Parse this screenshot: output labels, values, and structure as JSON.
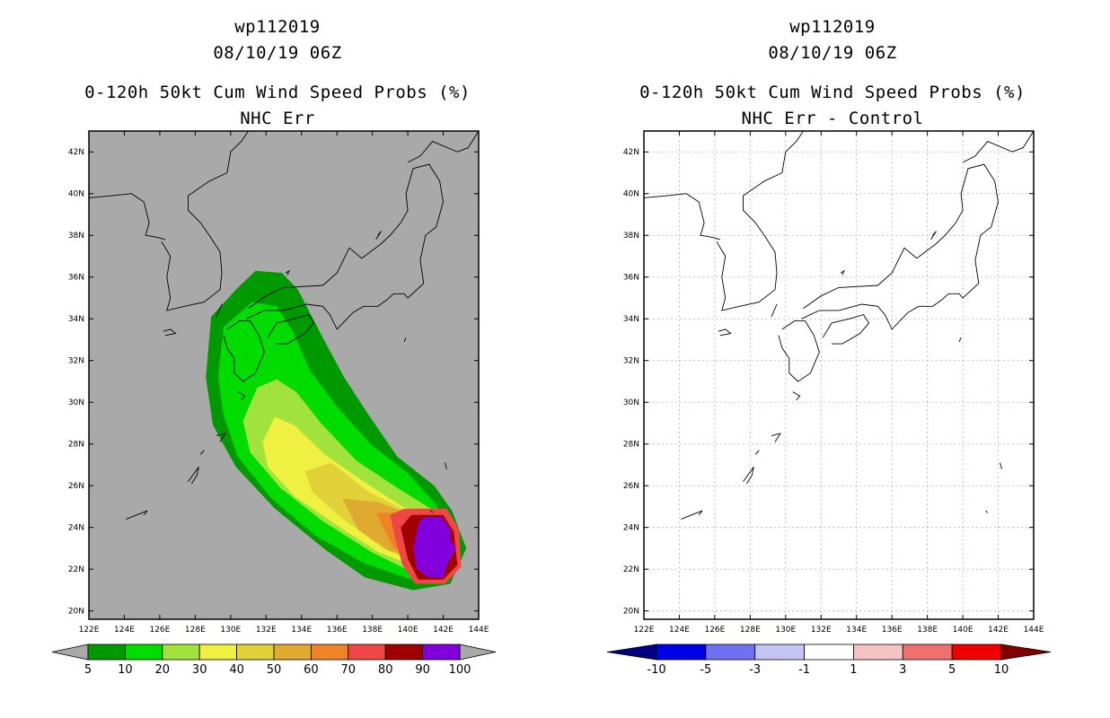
{
  "chart_data": [
    {
      "type": "heatmap",
      "titles": [
        "wp112019",
        "08/10/19 06Z",
        "0-120h 50kt Cum Wind Speed Probs (%)",
        "NHC Err"
      ],
      "x_ticks": [
        "122E",
        "124E",
        "126E",
        "128E",
        "130E",
        "132E",
        "134E",
        "136E",
        "138E",
        "140E",
        "142E",
        "144E"
      ],
      "y_ticks": [
        "20N",
        "22N",
        "24N",
        "26N",
        "28N",
        "30N",
        "32N",
        "34N",
        "36N",
        "38N",
        "40N",
        "42N"
      ],
      "xlim": [
        122,
        144
      ],
      "ylim": [
        19.6,
        43.0
      ],
      "grid": false,
      "background": "#a9a9a9",
      "colorbar": {
        "labels": [
          "5",
          "10",
          "20",
          "30",
          "40",
          "50",
          "60",
          "70",
          "80",
          "90",
          "100"
        ],
        "colors": [
          "#009a00",
          "#00dc00",
          "#a2e23c",
          "#f0f040",
          "#e1d23a",
          "#e0aa30",
          "#f08228",
          "#f04646",
          "#a00000",
          "#8200dc"
        ],
        "extend_colors": [
          "#a9a9a9",
          "#a9a9a9"
        ]
      },
      "contours": [
        {
          "level": 5,
          "color": "#009a00",
          "points": [
            [
              128.6,
              31.2
            ],
            [
              128.9,
              34.1
            ],
            [
              130.3,
              35.4
            ],
            [
              131.4,
              36.3
            ],
            [
              132.9,
              36.2
            ],
            [
              133.8,
              35.4
            ],
            [
              135.2,
              33.1
            ],
            [
              136.4,
              31.2
            ],
            [
              137.7,
              29.5
            ],
            [
              139.4,
              27.4
            ],
            [
              141.5,
              26.0
            ],
            [
              142.5,
              24.8
            ],
            [
              143.3,
              23.0
            ],
            [
              142.4,
              21.3
            ],
            [
              140.3,
              21.0
            ],
            [
              137.6,
              21.6
            ],
            [
              135.4,
              22.9
            ],
            [
              132.5,
              24.9
            ],
            [
              130.3,
              26.9
            ],
            [
              129.0,
              28.9
            ]
          ]
        },
        {
          "level": 10,
          "color": "#00dc00",
          "points": [
            [
              129.3,
              31.2
            ],
            [
              129.6,
              33.6
            ],
            [
              131.2,
              34.8
            ],
            [
              132.6,
              34.6
            ],
            [
              133.5,
              33.4
            ],
            [
              134.5,
              31.5
            ],
            [
              136.0,
              29.8
            ],
            [
              137.9,
              28.0
            ],
            [
              140.0,
              26.6
            ],
            [
              141.5,
              25.2
            ],
            [
              142.5,
              23.9
            ],
            [
              142.7,
              22.7
            ],
            [
              141.8,
              21.5
            ],
            [
              140.2,
              21.5
            ],
            [
              137.5,
              22.3
            ],
            [
              134.8,
              23.6
            ],
            [
              132.3,
              25.4
            ],
            [
              130.4,
              27.4
            ],
            [
              129.6,
              29.4
            ]
          ]
        },
        {
          "level": 20,
          "color": "#a2e23c",
          "points": [
            [
              130.7,
              29.1
            ],
            [
              131.5,
              30.7
            ],
            [
              132.6,
              31.1
            ],
            [
              133.7,
              30.5
            ],
            [
              135.1,
              29.0
            ],
            [
              137.1,
              27.2
            ],
            [
              139.4,
              25.9
            ],
            [
              141.5,
              24.8
            ],
            [
              142.3,
              23.5
            ],
            [
              141.8,
              21.8
            ],
            [
              140.4,
              21.8
            ],
            [
              138.0,
              22.8
            ],
            [
              135.2,
              24.3
            ],
            [
              132.8,
              25.9
            ],
            [
              131.1,
              27.6
            ]
          ]
        },
        {
          "level": 30,
          "color": "#f0f040",
          "points": [
            [
              131.8,
              28.1
            ],
            [
              132.5,
              29.3
            ],
            [
              133.6,
              28.9
            ],
            [
              135.3,
              27.5
            ],
            [
              137.5,
              26.2
            ],
            [
              139.7,
              25.0
            ],
            [
              141.5,
              24.5
            ],
            [
              141.9,
              23.0
            ],
            [
              140.8,
              22.0
            ],
            [
              138.4,
              22.8
            ],
            [
              136.0,
              24.1
            ],
            [
              133.6,
              25.5
            ],
            [
              132.1,
              26.9
            ]
          ]
        },
        {
          "level": 40,
          "color": "#e1d23a",
          "points": [
            [
              134.2,
              26.7
            ],
            [
              135.7,
              27.1
            ],
            [
              137.8,
              25.7
            ],
            [
              139.9,
              24.8
            ],
            [
              141.4,
              24.3
            ],
            [
              141.7,
              23.2
            ],
            [
              140.7,
              22.3
            ],
            [
              138.6,
              23.0
            ],
            [
              136.2,
              24.5
            ],
            [
              134.6,
              25.7
            ]
          ]
        },
        {
          "level": 50,
          "color": "#e0aa30",
          "points": [
            [
              136.3,
              25.4
            ],
            [
              138.4,
              25.2
            ],
            [
              140.2,
              24.6
            ],
            [
              141.3,
              24.0
            ],
            [
              141.5,
              23.1
            ],
            [
              140.6,
              22.4
            ],
            [
              138.9,
              22.9
            ],
            [
              137.2,
              23.9
            ]
          ]
        },
        {
          "level": 60,
          "color": "#f08228",
          "points": [
            [
              138.2,
              24.7
            ],
            [
              139.8,
              24.7
            ],
            [
              141.2,
              24.5
            ],
            [
              141.4,
              23.2
            ],
            [
              140.5,
              22.6
            ],
            [
              139.2,
              23.0
            ]
          ]
        },
        {
          "level": 70,
          "color": "#f04646",
          "points": [
            [
              139.0,
              24.6
            ],
            [
              139.8,
              24.9
            ],
            [
              142.2,
              24.9
            ],
            [
              142.9,
              23.9
            ],
            [
              143.0,
              22.1
            ],
            [
              142.1,
              21.3
            ],
            [
              140.4,
              21.3
            ],
            [
              139.7,
              22.2
            ],
            [
              139.3,
              23.4
            ]
          ]
        },
        {
          "level": 80,
          "color": "#a00000",
          "points": [
            [
              139.6,
              24.0
            ],
            [
              140.2,
              24.6
            ],
            [
              142.0,
              24.6
            ],
            [
              142.6,
              23.8
            ],
            [
              142.8,
              22.2
            ],
            [
              142.0,
              21.5
            ],
            [
              140.6,
              21.5
            ],
            [
              140.0,
              22.5
            ]
          ]
        },
        {
          "level": 90,
          "color": "#8200dc",
          "points": [
            [
              140.6,
              24.2
            ],
            [
              140.9,
              24.5
            ],
            [
              141.9,
              24.5
            ],
            [
              142.4,
              23.9
            ],
            [
              142.4,
              23.4
            ],
            [
              142.7,
              23.0
            ],
            [
              142.2,
              22.2
            ],
            [
              142.0,
              21.6
            ],
            [
              141.2,
              21.6
            ],
            [
              140.5,
              22.0
            ],
            [
              140.3,
              23.0
            ]
          ]
        }
      ]
    },
    {
      "type": "heatmap",
      "titles": [
        "wp112019",
        "08/10/19 06Z",
        "0-120h 50kt Cum Wind Speed Probs (%)",
        "NHC Err - Control"
      ],
      "x_ticks": [
        "122E",
        "124E",
        "126E",
        "128E",
        "130E",
        "132E",
        "134E",
        "136E",
        "138E",
        "140E",
        "142E",
        "144E"
      ],
      "y_ticks": [
        "20N",
        "22N",
        "24N",
        "26N",
        "28N",
        "30N",
        "32N",
        "34N",
        "36N",
        "38N",
        "40N",
        "42N"
      ],
      "xlim": [
        122,
        144
      ],
      "ylim": [
        19.6,
        43.0
      ],
      "grid": true,
      "background": "#ffffff",
      "colorbar": {
        "labels": [
          "-10",
          "-5",
          "-3",
          "-1",
          "1",
          "3",
          "5",
          "10"
        ],
        "colors": [
          "#0000e6",
          "#7070f0",
          "#c4c4f4",
          "#ffffff",
          "#f4c4c4",
          "#f07070",
          "#f00000"
        ],
        "extend_colors": [
          "#000080",
          "#800000"
        ]
      },
      "contours": []
    }
  ],
  "coastlines": [
    {
      "name": "korea",
      "points": [
        [
          126.1,
          37.7
        ],
        [
          126.6,
          37.0
        ],
        [
          126.4,
          36.0
        ],
        [
          126.6,
          35.0
        ],
        [
          126.4,
          34.4
        ],
        [
          127.4,
          34.6
        ],
        [
          128.5,
          34.8
        ],
        [
          129.4,
          35.4
        ],
        [
          129.5,
          36.2
        ],
        [
          129.4,
          37.2
        ],
        [
          128.8,
          38.0
        ],
        [
          128.3,
          38.6
        ],
        [
          127.6,
          39.2
        ],
        [
          127.6,
          39.9
        ],
        [
          128.8,
          40.6
        ],
        [
          129.8,
          41.0
        ],
        [
          130.0,
          42.0
        ],
        [
          130.6,
          42.5
        ],
        [
          131.0,
          43.0
        ]
      ]
    },
    {
      "name": "china-coast",
      "points": [
        [
          122.0,
          39.8
        ],
        [
          123.3,
          39.9
        ],
        [
          124.4,
          40.0
        ],
        [
          125.1,
          39.6
        ],
        [
          125.4,
          38.6
        ],
        [
          125.2,
          38.0
        ],
        [
          125.9,
          37.9
        ],
        [
          126.3,
          37.8
        ]
      ]
    },
    {
      "name": "kyushu",
      "points": [
        [
          129.8,
          33.5
        ],
        [
          130.5,
          33.9
        ],
        [
          131.1,
          33.9
        ],
        [
          131.6,
          33.2
        ],
        [
          131.9,
          32.4
        ],
        [
          131.4,
          31.4
        ],
        [
          130.7,
          31.0
        ],
        [
          130.2,
          31.4
        ],
        [
          130.2,
          32.1
        ],
        [
          129.8,
          32.6
        ],
        [
          129.6,
          33.2
        ]
      ]
    },
    {
      "name": "shikoku",
      "points": [
        [
          132.1,
          33.1
        ],
        [
          132.6,
          33.8
        ],
        [
          133.6,
          34.0
        ],
        [
          134.4,
          34.2
        ],
        [
          134.7,
          33.8
        ],
        [
          134.2,
          33.3
        ],
        [
          133.2,
          32.8
        ],
        [
          132.6,
          32.8
        ]
      ]
    },
    {
      "name": "honshu",
      "points": [
        [
          130.9,
          34.0
        ],
        [
          131.9,
          34.4
        ],
        [
          133.0,
          34.4
        ],
        [
          134.3,
          34.7
        ],
        [
          135.2,
          34.6
        ],
        [
          135.6,
          34.2
        ],
        [
          136.0,
          33.5
        ],
        [
          136.9,
          34.3
        ],
        [
          137.5,
          34.6
        ],
        [
          138.3,
          34.6
        ],
        [
          138.8,
          34.9
        ],
        [
          139.2,
          35.2
        ],
        [
          139.8,
          35.2
        ],
        [
          140.0,
          35.0
        ],
        [
          140.9,
          35.7
        ],
        [
          140.7,
          36.8
        ],
        [
          141.0,
          38.0
        ],
        [
          141.6,
          38.4
        ],
        [
          142.0,
          39.6
        ],
        [
          141.8,
          40.6
        ],
        [
          141.2,
          41.4
        ],
        [
          140.3,
          41.2
        ],
        [
          139.9,
          40.0
        ],
        [
          140.0,
          39.2
        ],
        [
          139.6,
          38.6
        ],
        [
          139.0,
          38.0
        ],
        [
          138.5,
          37.6
        ],
        [
          137.4,
          36.9
        ],
        [
          136.7,
          37.4
        ],
        [
          136.0,
          36.2
        ],
        [
          135.2,
          35.6
        ],
        [
          133.0,
          35.5
        ],
        [
          132.0,
          35.1
        ],
        [
          131.0,
          34.5
        ]
      ]
    },
    {
      "name": "hokkaido",
      "points": [
        [
          140.0,
          41.5
        ],
        [
          140.7,
          41.8
        ],
        [
          141.4,
          42.5
        ],
        [
          142.8,
          42.0
        ],
        [
          143.4,
          42.2
        ],
        [
          144.0,
          43.0
        ]
      ]
    },
    {
      "name": "tsushima",
      "points": [
        [
          129.2,
          34.1
        ],
        [
          129.5,
          34.7
        ],
        [
          129.3,
          34.3
        ]
      ]
    },
    {
      "name": "jeju",
      "points": [
        [
          126.2,
          33.4
        ],
        [
          126.6,
          33.5
        ],
        [
          126.9,
          33.3
        ],
        [
          126.3,
          33.2
        ]
      ]
    },
    {
      "name": "ryukyu-north",
      "points": [
        [
          130.4,
          30.5
        ],
        [
          130.8,
          30.3
        ],
        [
          130.6,
          30.1
        ]
      ]
    },
    {
      "name": "amami",
      "points": [
        [
          129.2,
          28.4
        ],
        [
          129.7,
          28.5
        ],
        [
          129.4,
          28.1
        ]
      ]
    },
    {
      "name": "okinawa",
      "points": [
        [
          127.6,
          26.2
        ],
        [
          128.2,
          26.9
        ],
        [
          128.1,
          26.5
        ],
        [
          127.8,
          26.1
        ]
      ]
    },
    {
      "name": "sakishima",
      "points": [
        [
          124.1,
          24.4
        ],
        [
          124.4,
          24.5
        ],
        [
          125.3,
          24.8
        ],
        [
          125.1,
          24.6
        ]
      ]
    },
    {
      "name": "oki",
      "points": [
        [
          133.1,
          36.2
        ],
        [
          133.3,
          36.3
        ],
        [
          133.2,
          36.1
        ]
      ]
    },
    {
      "name": "sado",
      "points": [
        [
          138.3,
          38.0
        ],
        [
          138.5,
          38.2
        ],
        [
          138.2,
          37.8
        ]
      ]
    },
    {
      "name": "tokara",
      "points": [
        [
          128.3,
          27.5
        ],
        [
          128.5,
          27.7
        ]
      ]
    },
    {
      "name": "izu-islands",
      "points": [
        [
          139.9,
          33.1
        ],
        [
          139.8,
          32.9
        ]
      ]
    },
    {
      "name": "bonin",
      "points": [
        [
          142.1,
          27.1
        ],
        [
          142.2,
          26.8
        ]
      ]
    },
    {
      "name": "iwo",
      "points": [
        [
          141.3,
          24.8
        ],
        [
          141.4,
          24.7
        ]
      ]
    }
  ]
}
